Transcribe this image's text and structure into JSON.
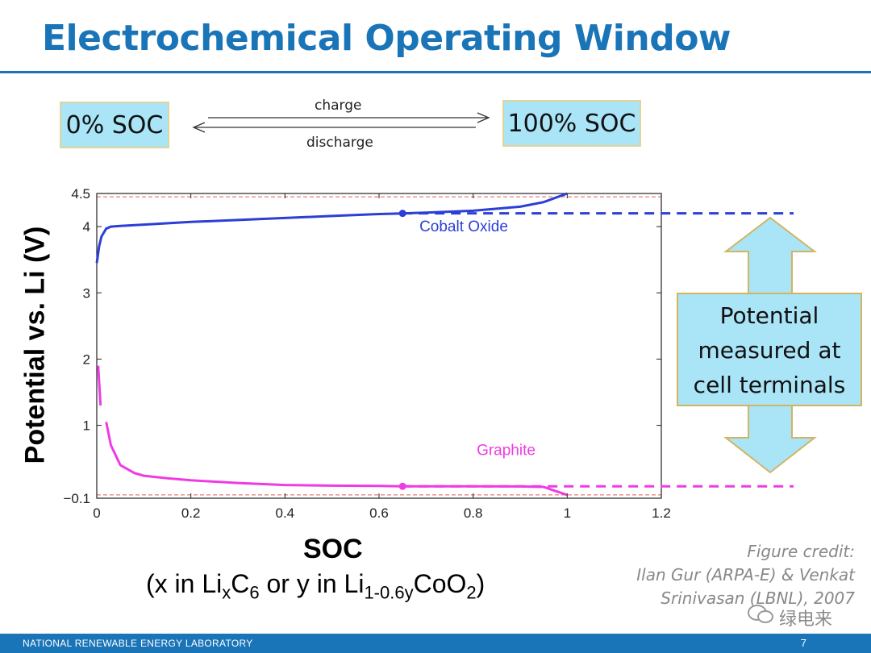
{
  "slide": {
    "title": "Electrochemical Operating Window",
    "soc_left": "0% SOC",
    "soc_right": "100% SOC",
    "arrow_top_label": "charge",
    "arrow_bottom_label": "discharge",
    "xaxis_title": "SOC",
    "xaxis_sub": {
      "p1": "(x in Li",
      "s1": "x",
      "p2": "C",
      "s2": "6",
      "p3": " or y in Li",
      "s3": "1-0.6y",
      "p4": "CoO",
      "s4": "2",
      "p5": ")"
    },
    "yaxis_title": "Potential vs. Li  (V)",
    "credit_lines": [
      "Figure credit:",
      "Ilan Gur (ARPA-E) & Venkat",
      "Srinivasan (LBNL), 2007"
    ],
    "footer_text": "NATIONAL RENEWABLE ENERGY LABORATORY",
    "page_number": "7",
    "watermark": "绿电来"
  },
  "callout": {
    "lines": [
      "Potential",
      "measured at",
      "cell terminals"
    ]
  },
  "colors": {
    "title": "#1a74b8",
    "cobalt": "#2b3fd6",
    "graphite": "#ee3be5",
    "box_fill": "#a9e4f7",
    "box_border": "#e2d39a"
  },
  "chart_data": {
    "type": "line",
    "xlim": [
      0,
      1.2
    ],
    "ylim": [
      -0.1,
      4.5
    ],
    "xticks": [
      "0",
      "0.2",
      "0.4",
      "0.6",
      "0.8",
      "1",
      "1.2"
    ],
    "xtick_values": [
      0,
      0.2,
      0.4,
      0.6,
      0.8,
      1.0,
      1.2
    ],
    "yticks": [
      "−0.1",
      "1",
      "2",
      "3",
      "4",
      "4.5"
    ],
    "ytick_values": [
      -0.1,
      1,
      2,
      3,
      4,
      4.5
    ],
    "operating_point_soc": 0.65,
    "series": [
      {
        "name": "Cobalt Oxide",
        "color": "#2b3fd6",
        "x": [
          0,
          0.005,
          0.01,
          0.02,
          0.03,
          0.05,
          0.1,
          0.2,
          0.3,
          0.4,
          0.5,
          0.6,
          0.65,
          0.7,
          0.8,
          0.9,
          0.95,
          1.0
        ],
        "y": [
          3.45,
          3.7,
          3.85,
          3.97,
          4.0,
          4.01,
          4.03,
          4.07,
          4.1,
          4.13,
          4.16,
          4.19,
          4.2,
          4.21,
          4.24,
          4.3,
          4.37,
          4.5
        ],
        "operating_value": 4.2
      },
      {
        "name": "Graphite",
        "color": "#ee3be5",
        "x": [
          0.02,
          0.03,
          0.05,
          0.08,
          0.1,
          0.15,
          0.2,
          0.3,
          0.4,
          0.5,
          0.6,
          0.65,
          0.7,
          0.8,
          0.9,
          0.95,
          0.97,
          1.0
        ],
        "y": [
          1.05,
          0.7,
          0.4,
          0.28,
          0.24,
          0.2,
          0.17,
          0.13,
          0.1,
          0.09,
          0.085,
          0.08,
          0.08,
          0.08,
          0.078,
          0.07,
          0.02,
          -0.05
        ],
        "operating_value": 0.08
      }
    ],
    "initial_graphite_segment": {
      "x": [
        0.003,
        0.008
      ],
      "y": [
        1.9,
        1.3
      ]
    },
    "reference_lines": [
      4.45,
      -0.05
    ]
  }
}
